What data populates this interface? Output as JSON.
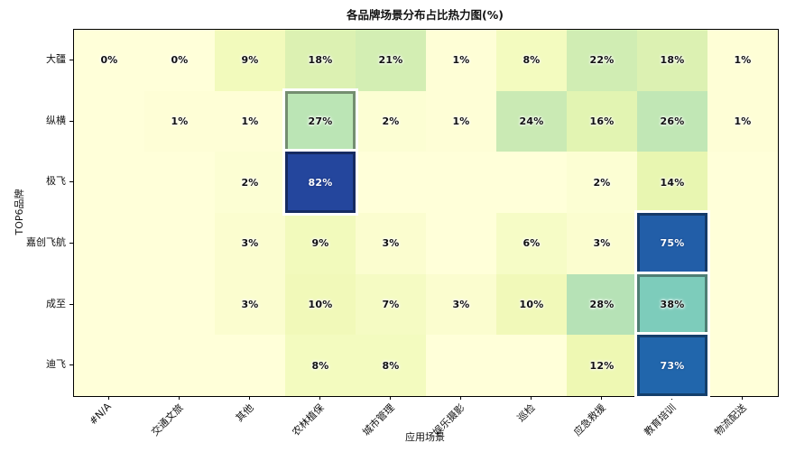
{
  "chart_data": {
    "type": "heatmap",
    "title": "各品牌场景分布占比热力图(%)",
    "xlabel": "应用场景",
    "ylabel": "TOP6品牌",
    "rows": [
      "大疆",
      "纵横",
      "极飞",
      "嘉创飞航",
      "成至",
      "迪飞"
    ],
    "columns": [
      "#N/A",
      "交通文旅",
      "其他",
      "农林植保",
      "城市管理",
      "娱乐摄影",
      "巡检",
      "应急救援",
      "教育培训",
      "物流配送"
    ],
    "values": [
      [
        0,
        0,
        9,
        18,
        21,
        1,
        8,
        22,
        18,
        1
      ],
      [
        null,
        1,
        1,
        27,
        2,
        1,
        24,
        16,
        26,
        1
      ],
      [
        null,
        null,
        2,
        82,
        null,
        null,
        null,
        2,
        14,
        null
      ],
      [
        null,
        null,
        3,
        9,
        3,
        null,
        6,
        3,
        75,
        null
      ],
      [
        null,
        null,
        3,
        10,
        7,
        3,
        10,
        28,
        38,
        null
      ],
      [
        null,
        null,
        null,
        8,
        8,
        null,
        null,
        12,
        73,
        null
      ]
    ],
    "value_suffix": "%",
    "vmin": 0,
    "vmax": 100,
    "colormap": "YlGnBu",
    "colormap_stops": [
      "#ffffd9",
      "#edf8b1",
      "#c7e9b4",
      "#7fcdbb",
      "#41b6c4",
      "#1d91c0",
      "#225ea8",
      "#253494",
      "#081d58"
    ],
    "highlighted_cells": [
      [
        1,
        3
      ],
      [
        2,
        3
      ],
      [
        3,
        8
      ],
      [
        4,
        8
      ],
      [
        5,
        8
      ]
    ],
    "grid": false,
    "legend": "none",
    "axis_color": "#000000",
    "background": "#ffffff"
  }
}
